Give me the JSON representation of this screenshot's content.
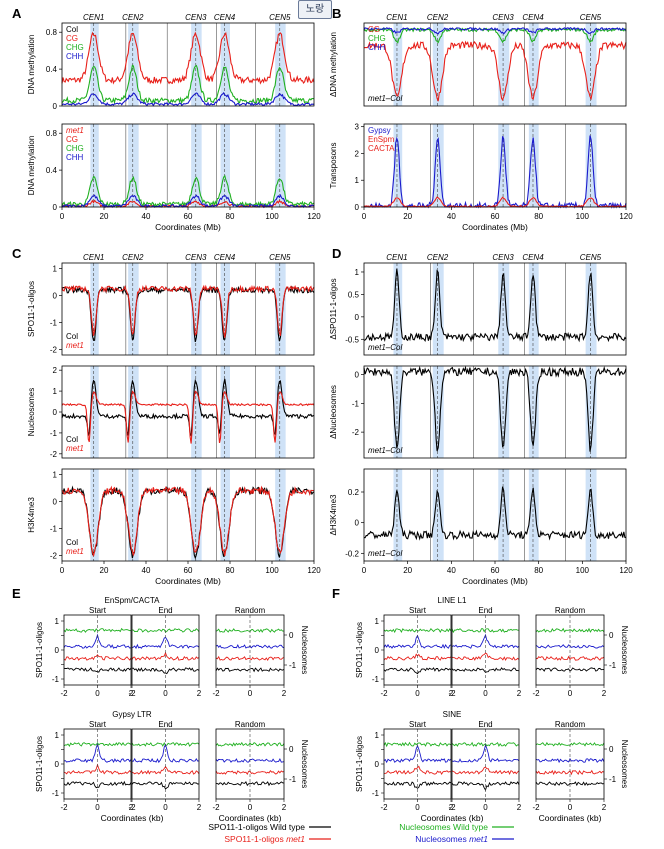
{
  "tooltip": "노랑",
  "colors": {
    "col": "#000000",
    "cg": "#e8201a",
    "chg": "#20b020",
    "chh": "#1a1acc",
    "gypsy": "#1a1acc",
    "enspm": "#e8201a",
    "cacta": "#e8201a",
    "band": "#cfe2f7"
  },
  "genome": {
    "xlabel": "Coordinates (Mb)",
    "xticks": [
      0,
      20,
      40,
      60,
      80,
      100,
      120
    ],
    "xlim": [
      0,
      120
    ],
    "centromeres": [
      {
        "name": "CEN1",
        "pos": 15.1,
        "span": [
          13.5,
          17.5
        ]
      },
      {
        "name": "CEN2",
        "pos": 33.7,
        "span": [
          31.5,
          36.5
        ]
      },
      {
        "name": "CEN3",
        "pos": 63.7,
        "span": [
          61.5,
          66.5
        ]
      },
      {
        "name": "CEN4",
        "pos": 77.4,
        "span": [
          75.5,
          80.0
        ]
      },
      {
        "name": "CEN5",
        "pos": 103.7,
        "span": [
          101.5,
          106.5
        ]
      }
    ],
    "chromosome_boundaries": [
      30.4,
      50.1,
      73.6,
      92.2
    ]
  },
  "panels": {
    "A": "A",
    "B": "B",
    "C": "C",
    "D": "D",
    "E": "E",
    "F": "F"
  },
  "chart_data": [
    {
      "id": "A-top",
      "type": "line",
      "ylabel": "DNA methylation",
      "ylim": [
        0,
        0.9
      ],
      "yticks": [
        0,
        0.4,
        0.8
      ],
      "legend": [
        "Col",
        "CG",
        "CHG",
        "CHH"
      ],
      "legend_italic": [
        false,
        false,
        false,
        false
      ],
      "series": [
        {
          "name": "CG",
          "color": "cg",
          "base": 0.28,
          "peak": 0.78,
          "width": 3.2,
          "dip": 0
        },
        {
          "name": "CHG",
          "color": "chg",
          "base": 0.06,
          "peak": 0.42,
          "width": 2.6,
          "dip": 0
        },
        {
          "name": "CHH",
          "color": "chh",
          "base": 0.02,
          "peak": 0.13,
          "width": 3.0,
          "dip": 0
        }
      ]
    },
    {
      "id": "A-bottom",
      "type": "line",
      "ylabel": "DNA methylation",
      "ylim": [
        0,
        0.9
      ],
      "yticks": [
        0,
        0.4,
        0.8
      ],
      "legend": [
        "met1",
        "CG",
        "CHG",
        "CHH"
      ],
      "legend_italic": [
        true,
        false,
        false,
        false
      ],
      "series": [
        {
          "name": "CG",
          "color": "cg",
          "base": 0.01,
          "peak": 0.06,
          "width": 2.5,
          "dip": 0
        },
        {
          "name": "CHG",
          "color": "chg",
          "base": 0.03,
          "peak": 0.32,
          "width": 2.4,
          "dip": 0
        },
        {
          "name": "CHH",
          "color": "chh",
          "base": 0.01,
          "peak": 0.12,
          "width": 2.8,
          "dip": 0
        }
      ]
    },
    {
      "id": "B-top",
      "type": "line",
      "ylabel": "ΔDNA methylation",
      "ylim": [
        -0.8,
        0.05
      ],
      "yticks": [],
      "legend": [
        "CG",
        "CHG",
        "CHH"
      ],
      "legend_italic": [
        false,
        false,
        false
      ],
      "inset_label": "met1–Col",
      "series": [
        {
          "name": "CG",
          "color": "cg",
          "base": -0.18,
          "peak": -0.72,
          "width": 3.0,
          "dip": 0
        },
        {
          "name": "CHG",
          "color": "chg",
          "base": -0.02,
          "peak": -0.14,
          "width": 2.0,
          "dip": 0
        },
        {
          "name": "CHH",
          "color": "chh",
          "base": -0.01,
          "peak": -0.05,
          "width": 2.0,
          "dip": 0
        }
      ]
    },
    {
      "id": "B-bottom",
      "type": "line",
      "ylabel": "Transposons",
      "ylim": [
        0,
        3.1
      ],
      "yticks": [
        0,
        1,
        2,
        3
      ],
      "legend": [
        "Gypsy",
        "EnSpm",
        "CACTA"
      ],
      "legend_italic": [
        false,
        false,
        false
      ],
      "series": [
        {
          "name": "Gypsy",
          "color": "gypsy",
          "base": 0.02,
          "peak": 2.6,
          "width": 1.6,
          "dip": 0
        },
        {
          "name": "EnSpm/CACTA",
          "color": "enspm",
          "base": 0.02,
          "peak": 0.35,
          "width": 2.2,
          "dip": 0
        }
      ]
    },
    {
      "id": "C-top",
      "type": "line",
      "ylabel": "SPO11-1-oligos",
      "ylim": [
        -2.2,
        1.2
      ],
      "yticks": [
        -2,
        -1,
        0,
        1
      ],
      "legend": [
        "Col",
        "met1"
      ],
      "legend_italic": [
        false,
        true
      ],
      "series": [
        {
          "name": "Col",
          "color": "col",
          "base": 0.2,
          "peak": -1.7,
          "width": 1.5,
          "dip": 0
        },
        {
          "name": "met1",
          "color": "cg",
          "base": 0.25,
          "peak": -1.5,
          "width": 1.5,
          "dip": 0
        }
      ]
    },
    {
      "id": "C-mid",
      "type": "line",
      "ylabel": "Nucleosomes",
      "ylim": [
        -2.2,
        2.2
      ],
      "yticks": [
        -2,
        -1,
        0,
        1,
        2
      ],
      "legend": [
        "Col",
        "met1"
      ],
      "legend_italic": [
        false,
        true
      ],
      "series": [
        {
          "name": "Col",
          "color": "col",
          "base": -0.2,
          "peak": 1.5,
          "width": 1.6,
          "dip": -1.3
        },
        {
          "name": "met1",
          "color": "cg",
          "base": 0.35,
          "peak": 1.0,
          "width": 1.6,
          "dip": -1.6
        }
      ]
    },
    {
      "id": "C-bottom",
      "type": "line",
      "ylabel": "H3K4me3",
      "ylim": [
        -2.2,
        1.2
      ],
      "yticks": [
        -2,
        -1,
        0,
        1
      ],
      "legend": [
        "Col",
        "met1"
      ],
      "legend_italic": [
        false,
        true
      ],
      "series": [
        {
          "name": "Col",
          "color": "col",
          "base": 0.4,
          "peak": -2.0,
          "width": 3.0,
          "dip": 0
        },
        {
          "name": "met1",
          "color": "cg",
          "base": 0.4,
          "peak": -1.9,
          "width": 3.0,
          "dip": 0
        }
      ]
    },
    {
      "id": "D-top",
      "type": "line",
      "ylabel": "ΔSPO11-1-oligos",
      "ylim": [
        -0.85,
        1.2
      ],
      "yticks": [
        -0.5,
        0,
        0.5,
        1.0
      ],
      "legend": [],
      "legend_italic": [],
      "inset_label": "met1–Col",
      "series": [
        {
          "name": "met1–Col",
          "color": "col",
          "base": -0.45,
          "peak": 1.0,
          "width": 1.4,
          "dip": 0
        }
      ]
    },
    {
      "id": "D-mid",
      "type": "line",
      "ylabel": "ΔNucleosomes",
      "ylim": [
        -2.9,
        0.3
      ],
      "yticks": [
        -2,
        -1,
        0
      ],
      "legend": [],
      "legend_italic": [],
      "inset_label": "met1–Col",
      "series": [
        {
          "name": "met1–Col",
          "color": "col",
          "base": 0.1,
          "peak": -2.6,
          "width": 1.6,
          "dip": 0
        }
      ]
    },
    {
      "id": "D-bottom",
      "type": "line",
      "ylabel": "ΔH3K4me3",
      "ylim": [
        -0.25,
        0.35
      ],
      "yticks": [
        -0.2,
        0,
        0.2
      ],
      "legend": [],
      "legend_italic": [],
      "inset_label": "met1–Col",
      "series": [
        {
          "name": "met1–Col",
          "color": "col",
          "base": -0.08,
          "peak": 0.22,
          "width": 1.4,
          "dip": 0
        }
      ]
    }
  ],
  "profiles": {
    "E": {
      "rows": [
        {
          "title": "EnSpm/CACTA",
          "left_ylabel": "SPO11-1-oligos",
          "right_ylabel": "Nucleosomes"
        },
        {
          "title": "Gypsy LTR",
          "left_ylabel": "SPO11-1-oligos",
          "right_ylabel": "Nucleosomes"
        }
      ]
    },
    "F": {
      "rows": [
        {
          "title": "LINE L1",
          "left_ylabel": "SPO11-1-oligos",
          "right_ylabel": "Nucleosomes"
        },
        {
          "title": "SINE",
          "left_ylabel": "SPO11-1-oligos",
          "right_ylabel": "Nucleosomes"
        }
      ]
    },
    "start": "Start",
    "end": "End",
    "random": "Random",
    "xticks_left": [
      "-2",
      "0",
      "2"
    ],
    "xticks_mid": [
      "-2",
      "0",
      "2"
    ],
    "xticks_rand": [
      "-2",
      "0",
      "2"
    ],
    "yticks_left": [
      "1",
      "0.5",
      "0",
      "-0.5",
      "-1"
    ],
    "yticks_right": [
      "0",
      "-1"
    ],
    "xlabel": "Coordinates (kb)"
  },
  "legend_bottom": {
    "wt_spo": "SPO11-1-oligos Wild type",
    "met1_spo_prefix": "SPO11-1-oligos ",
    "met1_spo_italic": "met1",
    "wt_nuc": "Nucleosomes Wild type",
    "met1_nuc_prefix": "Nucleosomes ",
    "met1_nuc_italic": "met1"
  }
}
